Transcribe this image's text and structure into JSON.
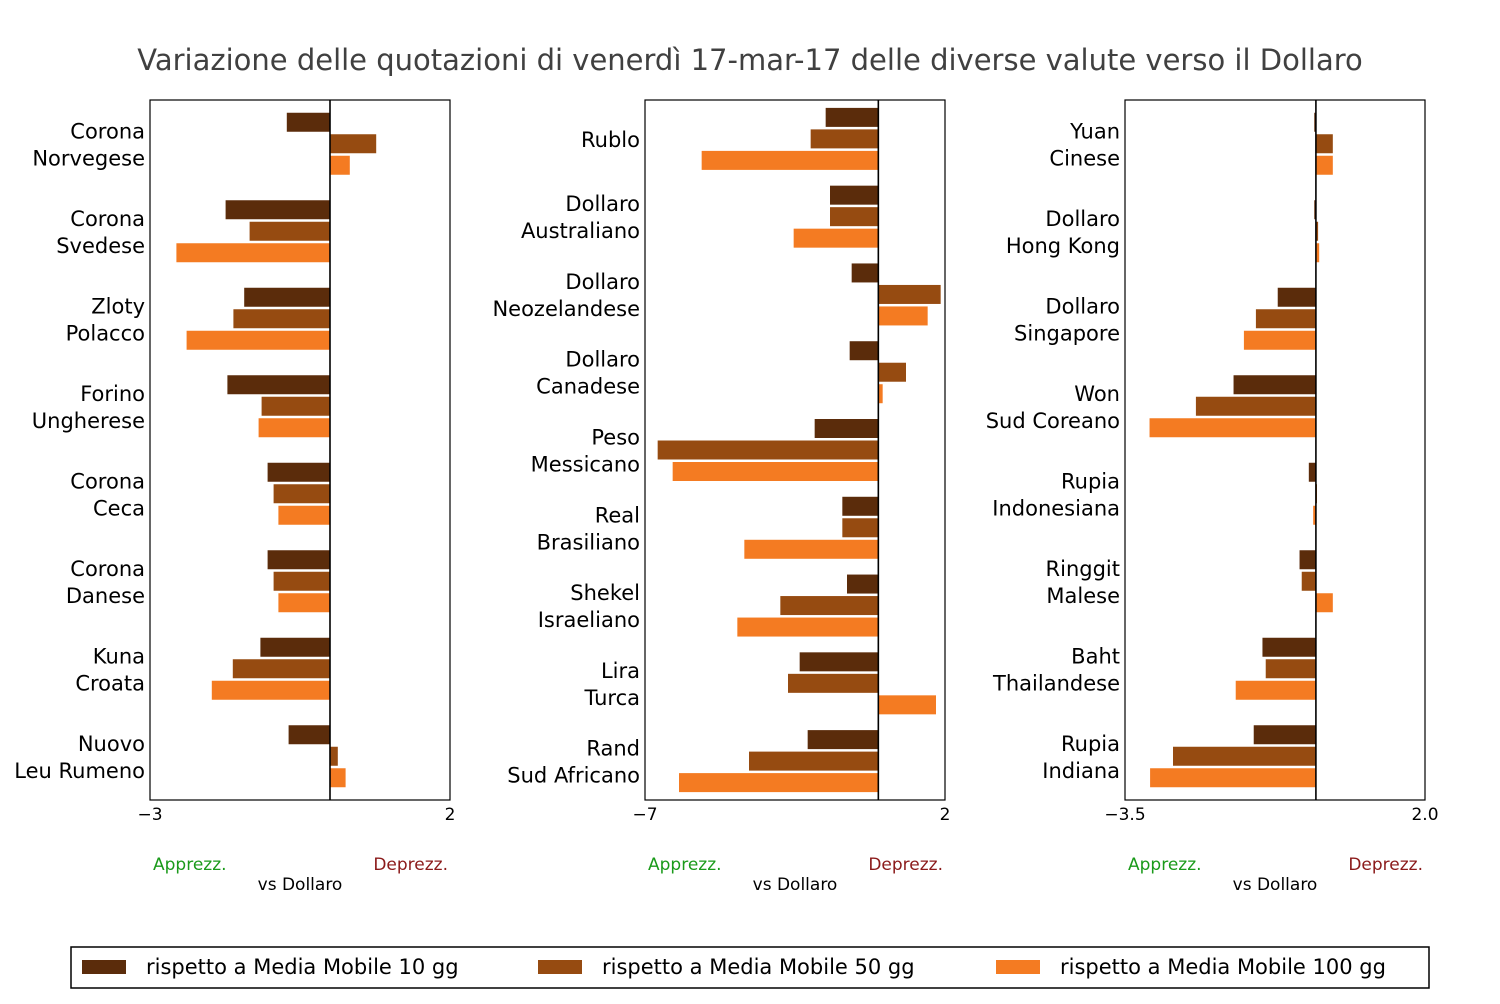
{
  "chart_data": {
    "type": "bar",
    "title": "Variazione delle quotazioni di venerdì 17-mar-17 delle diverse valute verso il Dollaro",
    "orientation": "horizontal",
    "series_names": [
      "rispetto a Media Mobile 10 gg",
      "rispetto a Media Mobile 50 gg",
      "rispetto a Media Mobile 100 gg"
    ],
    "colors": [
      "#5b2c0b",
      "#964b11",
      "#f47b22"
    ],
    "xlabel": "vs Dollaro",
    "label_left": "Apprezz.",
    "label_right": "Deprezz.",
    "label_left_color": "#1a9a1a",
    "label_right_color": "#8b1a1a",
    "legend_position": "bottom",
    "panels": [
      {
        "xlim": [
          -3,
          2
        ],
        "ticks": [
          "−3",
          "2"
        ],
        "categories": [
          [
            "Corona",
            "Norvegese"
          ],
          [
            "Corona",
            "Svedese"
          ],
          [
            "Zloty",
            "Polacco"
          ],
          [
            "Forino",
            "Ungherese"
          ],
          [
            "Corona",
            "Ceca"
          ],
          [
            "Corona",
            "Danese"
          ],
          [
            "Kuna",
            "Croata"
          ],
          [
            "Nuovo",
            "Leu Rumeno"
          ]
        ],
        "values": [
          [
            -0.72,
            0.77,
            0.33
          ],
          [
            -1.74,
            -1.34,
            -2.56
          ],
          [
            -1.43,
            -1.61,
            -2.39
          ],
          [
            -1.71,
            -1.14,
            -1.19
          ],
          [
            -1.04,
            -0.94,
            -0.86
          ],
          [
            -1.04,
            -0.94,
            -0.86
          ],
          [
            -1.16,
            -1.62,
            -1.97
          ],
          [
            -0.69,
            0.13,
            0.26
          ]
        ]
      },
      {
        "xlim": [
          -7,
          2
        ],
        "ticks": [
          "−7",
          "2"
        ],
        "categories": [
          [
            "Rublo"
          ],
          [
            "Dollaro",
            "Australiano"
          ],
          [
            "Dollaro",
            "Neozelandese"
          ],
          [
            "Dollaro",
            "Canadese"
          ],
          [
            "Peso",
            "Messicano"
          ],
          [
            "Real",
            "Brasiliano"
          ],
          [
            "Shekel",
            "Israeliano"
          ],
          [
            "Lira",
            "Turca"
          ],
          [
            "Rand",
            "Sud Africano"
          ]
        ],
        "values": [
          [
            -1.58,
            -2.03,
            -5.3
          ],
          [
            -1.45,
            -1.45,
            -2.54
          ],
          [
            -0.8,
            1.87,
            1.48
          ],
          [
            -0.86,
            0.83,
            0.13
          ],
          [
            -1.91,
            -6.62,
            -6.17
          ],
          [
            -1.08,
            -1.08,
            -4.02
          ],
          [
            -0.94,
            -2.94,
            -4.23
          ],
          [
            -2.36,
            -2.71,
            1.73
          ],
          [
            -2.12,
            -3.88,
            -5.98
          ]
        ]
      },
      {
        "xlim": [
          -3.5,
          2.0
        ],
        "ticks": [
          "−3.5",
          "2.0"
        ],
        "categories": [
          [
            "Yuan",
            "Cinese"
          ],
          [
            "Dollaro",
            "Hong Kong"
          ],
          [
            "Dollaro",
            "Singapore"
          ],
          [
            "Won",
            "Sud Coreano"
          ],
          [
            "Rupia",
            "Indonesiana"
          ],
          [
            "Ringgit",
            "Malese"
          ],
          [
            "Baht",
            "Thailandese"
          ],
          [
            "Rupia",
            "Indiana"
          ]
        ],
        "values": [
          [
            -0.03,
            0.31,
            0.31
          ],
          [
            -0.03,
            0.04,
            0.06
          ],
          [
            -0.7,
            -1.1,
            -1.32
          ],
          [
            -1.51,
            -2.2,
            -3.05
          ],
          [
            -0.13,
            0.02,
            -0.05
          ],
          [
            -0.3,
            -0.26,
            0.31
          ],
          [
            -0.98,
            -0.92,
            -1.47
          ],
          [
            -1.14,
            -2.62,
            -3.04
          ]
        ]
      }
    ]
  }
}
